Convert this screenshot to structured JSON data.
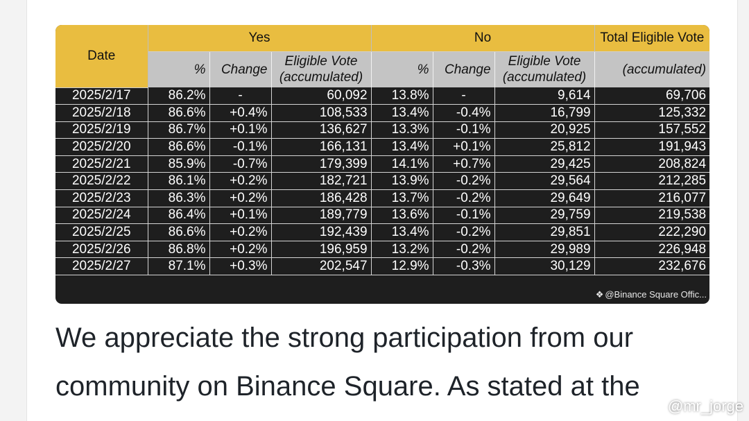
{
  "table": {
    "headers": {
      "date": "Date",
      "yes": "Yes",
      "no": "No",
      "total": "Total Eligible Vote",
      "pct": "%",
      "change": "Change",
      "eligible_line1": "Eligible Vote",
      "eligible_line2": "(accumulated)",
      "total_sub": "(accumulated)"
    },
    "rows": [
      [
        "2025/2/17",
        "86.2%",
        "-",
        "60,092",
        "13.8%",
        "-",
        "9,614",
        "69,706"
      ],
      [
        "2025/2/18",
        "86.6%",
        "+0.4%",
        "108,533",
        "13.4%",
        "-0.4%",
        "16,799",
        "125,332"
      ],
      [
        "2025/2/19",
        "86.7%",
        "+0.1%",
        "136,627",
        "13.3%",
        "-0.1%",
        "20,925",
        "157,552"
      ],
      [
        "2025/2/20",
        "86.6%",
        "-0.1%",
        "166,131",
        "13.4%",
        "+0.1%",
        "25,812",
        "191,943"
      ],
      [
        "2025/2/21",
        "85.9%",
        "-0.7%",
        "179,399",
        "14.1%",
        "+0.7%",
        "29,425",
        "208,824"
      ],
      [
        "2025/2/22",
        "86.1%",
        "+0.2%",
        "182,721",
        "13.9%",
        "-0.2%",
        "29,564",
        "212,285"
      ],
      [
        "2025/2/23",
        "86.3%",
        "+0.2%",
        "186,428",
        "13.7%",
        "-0.2%",
        "29,649",
        "216,077"
      ],
      [
        "2025/2/24",
        "86.4%",
        "+0.1%",
        "189,779",
        "13.6%",
        "-0.1%",
        "29,759",
        "219,538"
      ],
      [
        "2025/2/25",
        "86.6%",
        "+0.2%",
        "192,439",
        "13.4%",
        "-0.2%",
        "29,851",
        "222,290"
      ],
      [
        "2025/2/26",
        "86.8%",
        "+0.2%",
        "196,959",
        "13.2%",
        "-0.2%",
        "29,989",
        "226,948"
      ],
      [
        "2025/2/27",
        "87.1%",
        "+0.3%",
        "202,547",
        "12.9%",
        "-0.3%",
        "30,129",
        "232,676"
      ]
    ]
  },
  "card_watermark": "@Binance Square Offic...",
  "card_watermark_icon": "binance-logo-icon",
  "paragraph": "We appreciate the strong participation from our community on Binance Square. As stated at the",
  "corner_watermark": "@mr_jorge",
  "colors": {
    "header_gold": "#e9bd40",
    "subheader_gray": "#c4c4c4",
    "table_bg": "#1e1e1e",
    "text_dark": "#1e2329"
  }
}
